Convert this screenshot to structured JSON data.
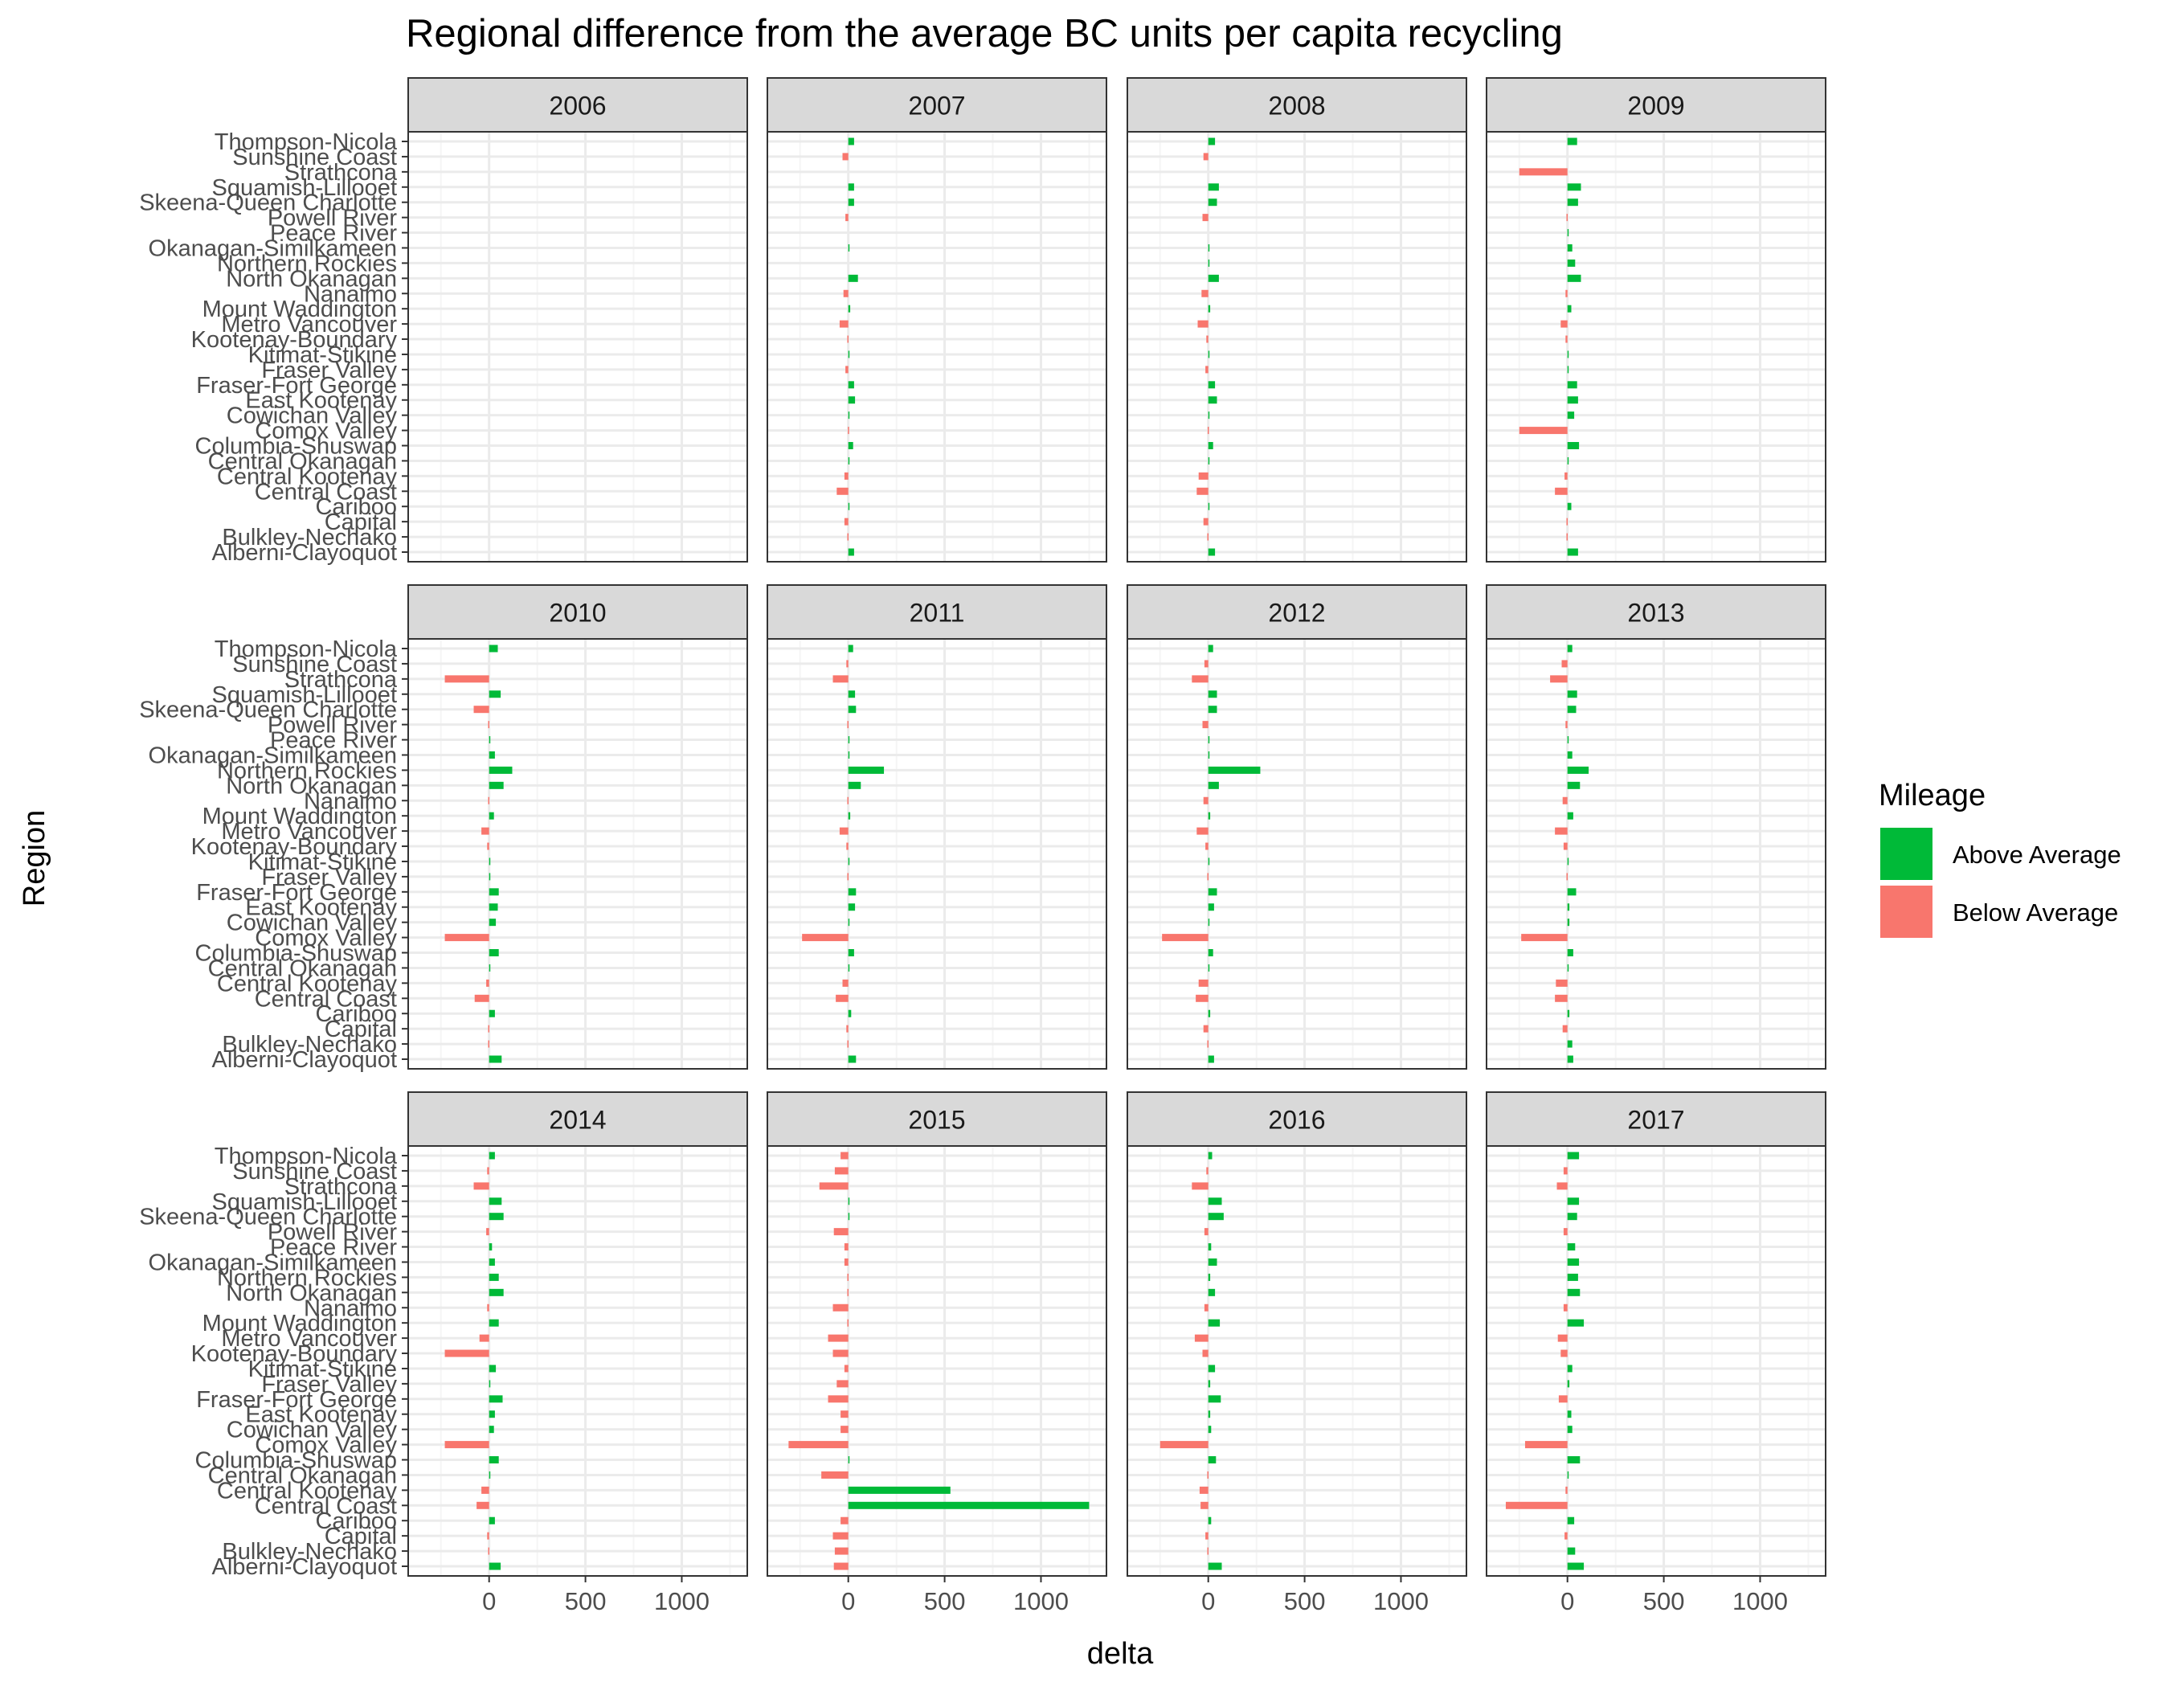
{
  "chart_data": {
    "type": "bar",
    "orientation": "horizontal",
    "facet_by": "year",
    "title": "Regional difference from the average BC units per capita recycling",
    "xlabel": "delta",
    "ylabel": "Region",
    "xlim": [
      -420,
      1340
    ],
    "xticks": [
      0,
      500,
      1000
    ],
    "xtick_labels": [
      "0",
      "500",
      "1000"
    ],
    "grid": true,
    "legend": {
      "title": "Mileage",
      "position": "right",
      "entries": [
        {
          "label": "Above Average",
          "color": "#00ba38"
        },
        {
          "label": "Below Average",
          "color": "#f8766d"
        }
      ]
    },
    "colors": {
      "above": "#00ba38",
      "below": "#f8766d",
      "strip": "#d9d9d9",
      "grid_major": "#ebebeb",
      "grid_minor": "#f5f5f5",
      "border": "#333333"
    },
    "regions": [
      "Alberni-Clayoquot",
      "Bulkley-Nechako",
      "Capital",
      "Cariboo",
      "Central Coast",
      "Central Kootenay",
      "Central Okanagan",
      "Columbia-Shuswap",
      "Comox Valley",
      "Cowichan Valley",
      "East Kootenay",
      "Fraser-Fort George",
      "Fraser Valley",
      "Kitimat-Stikine",
      "Kootenay-Boundary",
      "Metro Vancouver",
      "Mount Waddington",
      "Nanaimo",
      "North Okanagan",
      "Northern Rockies",
      "Okanagan-Similkameen",
      "Peace River",
      "Powell River",
      "Skeena-Queen Charlotte",
      "Squamish-Lillooet",
      "Strathcona",
      "Sunshine Coast",
      "Thompson-Nicola"
    ],
    "facets": [
      {
        "year": "2006",
        "values": [
          null,
          null,
          null,
          null,
          null,
          null,
          null,
          null,
          null,
          null,
          null,
          null,
          null,
          null,
          null,
          null,
          null,
          null,
          null,
          null,
          null,
          null,
          null,
          null,
          null,
          null,
          null,
          null
        ]
      },
      {
        "year": "2007",
        "values": [
          30,
          -5,
          -20,
          5,
          -60,
          -20,
          5,
          25,
          -2,
          5,
          35,
          30,
          -15,
          3,
          -5,
          -45,
          10,
          -25,
          50,
          null,
          5,
          null,
          -15,
          30,
          30,
          null,
          -30,
          30
        ]
      },
      {
        "year": "2008",
        "values": [
          35,
          -5,
          -25,
          5,
          -60,
          -50,
          5,
          25,
          -3,
          5,
          45,
          35,
          -15,
          3,
          -10,
          -55,
          10,
          -35,
          55,
          5,
          3,
          null,
          -30,
          45,
          55,
          null,
          -25,
          35
        ]
      },
      {
        "year": "2009",
        "values": [
          55,
          -5,
          -5,
          20,
          -65,
          -15,
          5,
          60,
          -250,
          35,
          55,
          50,
          5,
          5,
          -10,
          -35,
          20,
          -10,
          70,
          40,
          25,
          5,
          -5,
          55,
          70,
          -250,
          null,
          50
        ]
      },
      {
        "year": "2010",
        "values": [
          65,
          -5,
          -5,
          30,
          -75,
          -15,
          5,
          50,
          -230,
          35,
          45,
          50,
          5,
          5,
          -10,
          -40,
          25,
          -5,
          75,
          120,
          30,
          5,
          -5,
          -80,
          60,
          -230,
          null,
          45
        ]
      },
      {
        "year": "2011",
        "values": [
          40,
          -5,
          -10,
          15,
          -65,
          -30,
          5,
          30,
          -240,
          5,
          35,
          40,
          -5,
          5,
          -10,
          -45,
          10,
          -5,
          65,
          185,
          5,
          5,
          -5,
          40,
          35,
          -80,
          -10,
          25
        ]
      },
      {
        "year": "2012",
        "values": [
          30,
          -5,
          -25,
          10,
          -65,
          -50,
          5,
          25,
          -240,
          5,
          30,
          45,
          -5,
          3,
          -15,
          -60,
          10,
          -25,
          55,
          270,
          5,
          5,
          -30,
          45,
          45,
          -85,
          -20,
          25
        ]
      },
      {
        "year": "2013",
        "values": [
          30,
          25,
          -25,
          10,
          -65,
          -60,
          5,
          30,
          -240,
          10,
          10,
          45,
          -5,
          5,
          -20,
          -65,
          30,
          -25,
          65,
          110,
          25,
          5,
          -10,
          45,
          50,
          -90,
          -30,
          25
        ]
      },
      {
        "year": "2014",
        "values": [
          60,
          -5,
          -10,
          30,
          -65,
          -40,
          5,
          50,
          -230,
          25,
          30,
          70,
          5,
          35,
          -230,
          -50,
          50,
          -10,
          75,
          50,
          30,
          15,
          -15,
          75,
          65,
          -80,
          -10,
          30
        ]
      },
      {
        "year": "2015",
        "values": [
          -75,
          -70,
          -80,
          -40,
          1250,
          530,
          -140,
          5,
          -310,
          -40,
          -40,
          -105,
          -60,
          -20,
          -80,
          -105,
          -5,
          -80,
          -5,
          -5,
          -20,
          -20,
          -75,
          5,
          5,
          -150,
          -70,
          -40
        ]
      },
      {
        "year": "2016",
        "values": [
          70,
          -5,
          -15,
          15,
          -40,
          -45,
          -5,
          40,
          -250,
          15,
          10,
          65,
          10,
          35,
          -30,
          -70,
          60,
          -20,
          35,
          10,
          45,
          15,
          -20,
          80,
          70,
          -85,
          -10,
          20
        ]
      },
      {
        "year": "2017",
        "values": [
          85,
          40,
          -15,
          35,
          -320,
          -10,
          5,
          65,
          -220,
          25,
          20,
          -45,
          10,
          25,
          -35,
          -50,
          85,
          -20,
          65,
          55,
          60,
          40,
          -20,
          50,
          60,
          -55,
          -20,
          60
        ]
      }
    ]
  }
}
